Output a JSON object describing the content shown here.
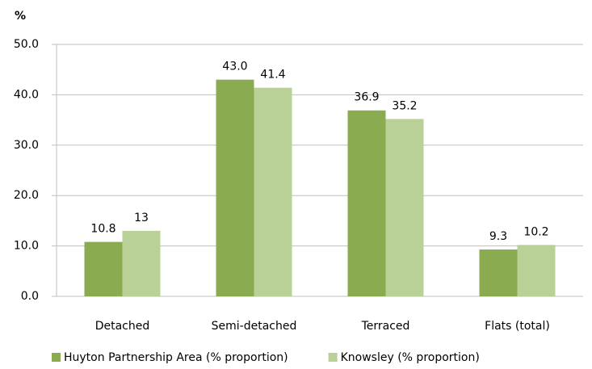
{
  "chart_data": {
    "type": "bar",
    "y_label": "%",
    "categories": [
      "Detached",
      "Semi-detached",
      "Terraced",
      "Flats (total)"
    ],
    "series": [
      {
        "name": "Huyton Partnership Area (% proportion)",
        "color": "#8aab4f",
        "values": [
          10.8,
          43.0,
          36.9,
          9.3
        ],
        "value_labels": [
          "10.8",
          "43.0",
          "36.9",
          "9.3"
        ]
      },
      {
        "name": "Knowsley (% proportion)",
        "color": "#b9d196",
        "values": [
          13,
          41.4,
          35.2,
          10.2
        ],
        "value_labels": [
          "13",
          "41.4",
          "35.2",
          "10.2"
        ]
      }
    ],
    "ylim": [
      0,
      50
    ],
    "yticks": [
      {
        "value": 0,
        "label": "0.0"
      },
      {
        "value": 10,
        "label": "10.0"
      },
      {
        "value": 20,
        "label": "20.0"
      },
      {
        "value": 30,
        "label": "30.0"
      },
      {
        "value": 40,
        "label": "40.0"
      },
      {
        "value": 50,
        "label": "50.0"
      }
    ],
    "grid": true,
    "legend": "bottom"
  }
}
